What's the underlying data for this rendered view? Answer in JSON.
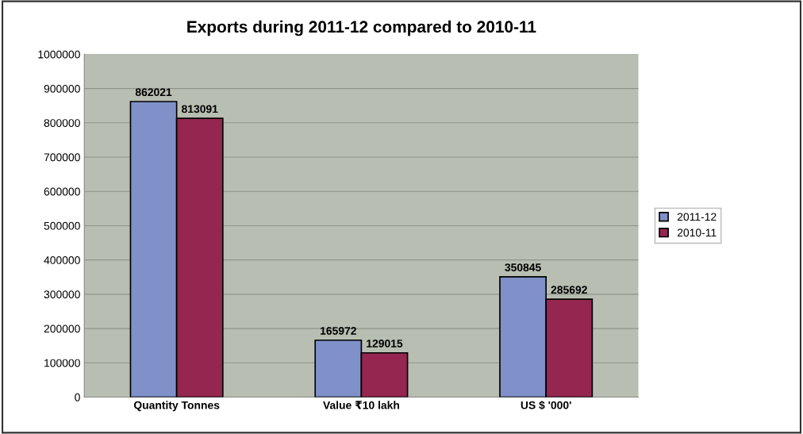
{
  "chart_data": {
    "type": "bar",
    "title": "Exports during 2011-12 compared to 2010-11",
    "categories": [
      "Quantity Tonnes",
      "Value ₹10 lakh",
      "US $ '000'"
    ],
    "series": [
      {
        "name": "2011-12",
        "color": "#8090c8",
        "values": [
          862021,
          165972,
          350845
        ]
      },
      {
        "name": "2010-11",
        "color": "#942650",
        "values": [
          813091,
          129015,
          285692
        ]
      }
    ],
    "ylim": [
      0,
      1000000
    ],
    "yticks": [
      0,
      100000,
      200000,
      300000,
      400000,
      500000,
      600000,
      700000,
      800000,
      900000,
      1000000
    ],
    "grid": "y",
    "legend": "right",
    "data_labels": true
  }
}
